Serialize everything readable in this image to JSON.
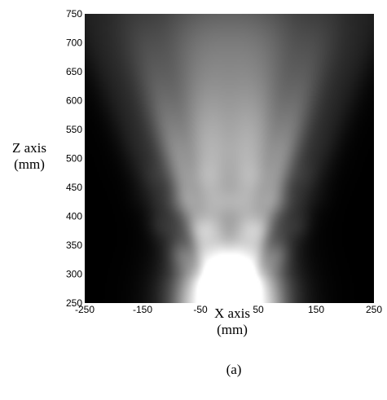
{
  "chart_data": {
    "type": "heatmap",
    "title": "",
    "xlabel": [
      "X axis",
      "(mm)"
    ],
    "ylabel": [
      "Z axis",
      "(mm)"
    ],
    "caption": "(a)",
    "xlim": [
      -250,
      250
    ],
    "ylim": [
      250,
      750
    ],
    "x_ticks": [
      -250,
      -150,
      -50,
      50,
      150,
      250
    ],
    "y_ticks": [
      250,
      300,
      350,
      400,
      450,
      500,
      550,
      600,
      650,
      700,
      750
    ],
    "colormap": "grayscale",
    "colors": {
      "low": "#000000",
      "high": "#ffffff"
    },
    "grid": false,
    "legend": "none",
    "description_values": {
      "peak_location": {
        "x": 0,
        "z": 260
      },
      "beam_lobes_x_at_z500": [
        -160,
        -90,
        -30,
        30,
        90,
        160
      ]
    }
  }
}
